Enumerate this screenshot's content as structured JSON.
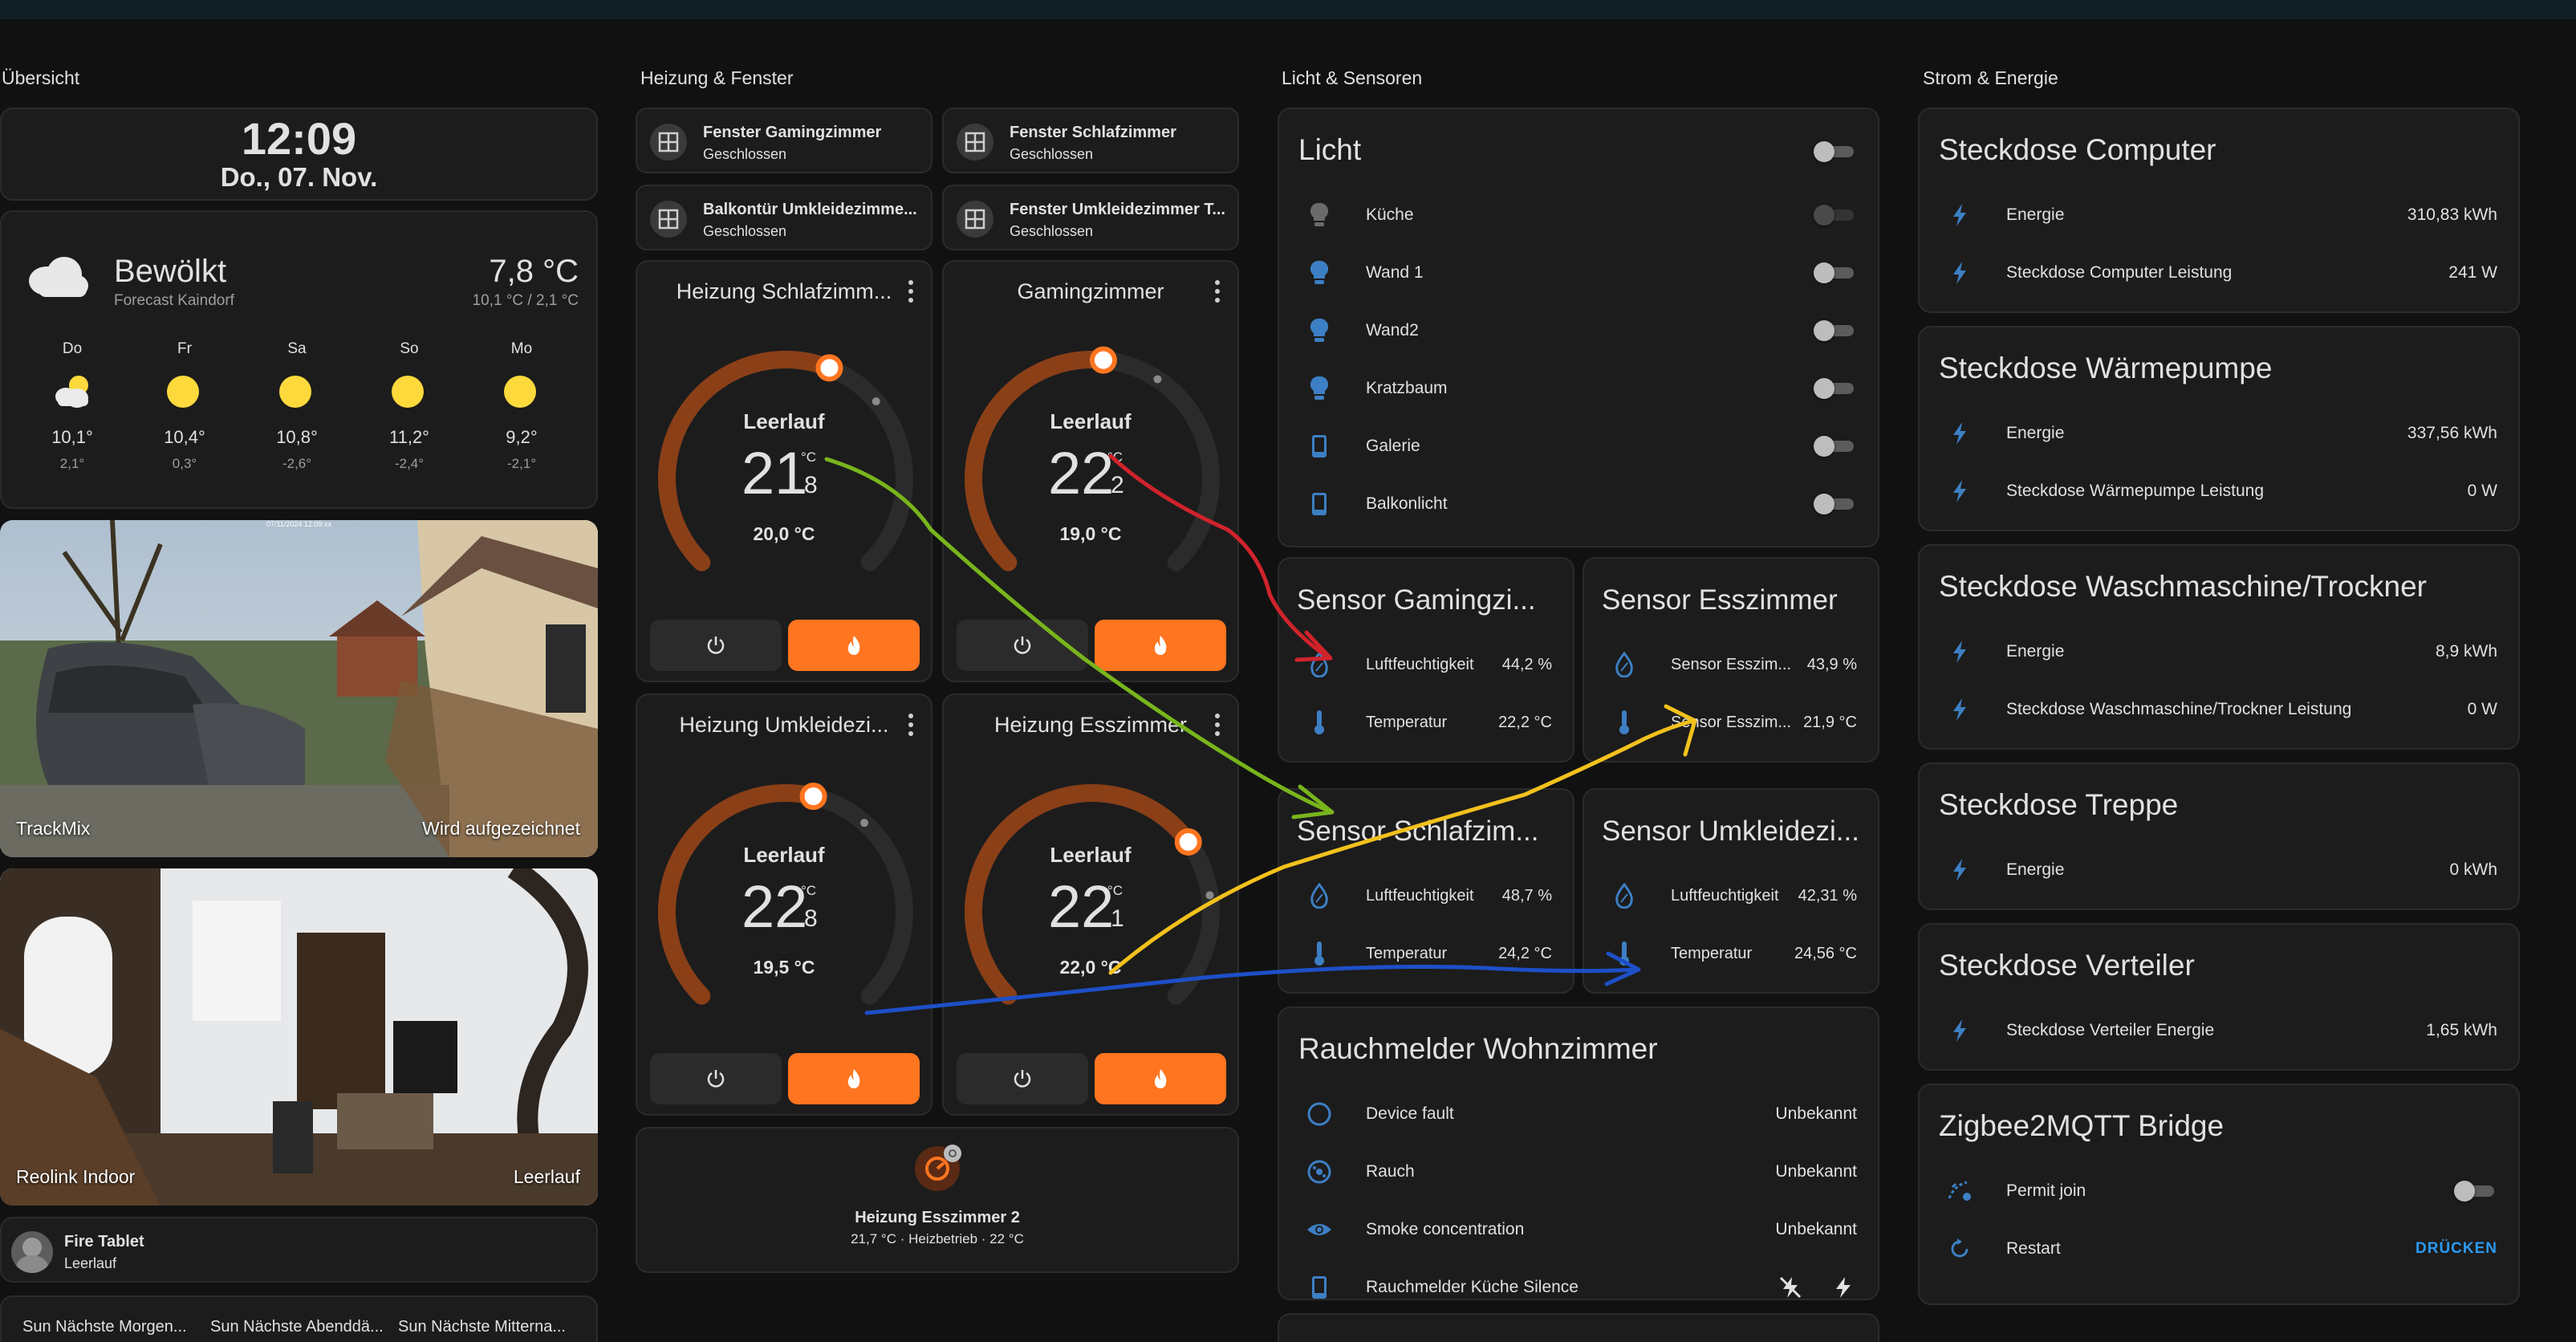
{
  "columns": {
    "overview": "Übersicht",
    "heating": "Heizung & Fenster",
    "lights": "Licht & Sensoren",
    "energy": "Strom & Energie"
  },
  "clock": {
    "time": "12:09",
    "date": "Do., 07. Nov."
  },
  "weather": {
    "condition": "Bewölkt",
    "location": "Forecast Kaindorf",
    "temp": "7,8 °C",
    "range": "10,1 °C / 2,1 °C",
    "forecast": [
      {
        "day": "Do",
        "icon": "partly-cloudy-icon",
        "high": "10,1°",
        "low": "2,1°"
      },
      {
        "day": "Fr",
        "icon": "sun-icon",
        "high": "10,4°",
        "low": "0,3°"
      },
      {
        "day": "Sa",
        "icon": "sun-icon",
        "high": "10,8°",
        "low": "-2,6°"
      },
      {
        "day": "So",
        "icon": "sun-icon",
        "high": "11,2°",
        "low": "-2,4°"
      },
      {
        "day": "Mo",
        "icon": "sun-icon",
        "high": "9,2°",
        "low": "-2,1°"
      }
    ]
  },
  "cameras": [
    {
      "name": "TrackMix",
      "status": "Wird aufgezeichnet",
      "timestamp": "07/11/2024 12:09:xx"
    },
    {
      "name": "Reolink Indoor",
      "status": "Leerlauf"
    }
  ],
  "fire_tablet": {
    "name": "Fire Tablet",
    "state": "Leerlauf"
  },
  "sun_chips": [
    "Sun Nächste Morgen...",
    "Sun Nächste Abenddä...",
    "Sun Nächste Mitterna..."
  ],
  "windows": [
    {
      "name": "Fenster Gamingzimmer",
      "state": "Geschlossen"
    },
    {
      "name": "Fenster Schlafzimmer",
      "state": "Geschlossen"
    },
    {
      "name": "Balkontür Umkleidezimme...",
      "state": "Geschlossen"
    },
    {
      "name": "Fenster Umkleidezimmer T...",
      "state": "Geschlossen"
    }
  ],
  "thermostats": [
    {
      "name": "Heizung Schlafzimm...",
      "mode": "Leerlauf",
      "current_int": "21",
      "current_dec": "8",
      "unit": "°C",
      "target": "20,0 °C",
      "setpoint_fraction": 0.58
    },
    {
      "name": "Gamingzimmer",
      "mode": "Leerlauf",
      "current_int": "22",
      "current_dec": "2",
      "unit": "°C",
      "target": "19,0 °C",
      "setpoint_fraction": 0.52
    },
    {
      "name": "Heizung Umkleidezi...",
      "mode": "Leerlauf",
      "current_int": "22",
      "current_dec": "8",
      "unit": "°C",
      "target": "19,5 °C",
      "setpoint_fraction": 0.55
    },
    {
      "name": "Heizung Esszimmer",
      "mode": "Leerlauf",
      "current_int": "22",
      "current_dec": "1",
      "unit": "°C",
      "target": "22,0 °C",
      "setpoint_fraction": 0.7
    }
  ],
  "heater2": {
    "name": "Heizung Esszimmer 2",
    "detail": "21,7 °C · Heizbetrieb · 22 °C"
  },
  "light_card": {
    "title": "Licht",
    "items": [
      {
        "name": "Küche",
        "icon": "bulb-icon",
        "on": false
      },
      {
        "name": "Wand 1",
        "icon": "bulb-icon",
        "on": false
      },
      {
        "name": "Wand2",
        "icon": "bulb-icon",
        "on": false
      },
      {
        "name": "Kratzbaum",
        "icon": "bulb-icon",
        "on": false
      },
      {
        "name": "Galerie",
        "icon": "phone-icon",
        "on": false
      },
      {
        "name": "Balkonlicht",
        "icon": "phone-icon",
        "on": false
      }
    ]
  },
  "sensors": [
    {
      "title": "Sensor Gamingzi...",
      "hum_label": "Luftfeuchtigkeit",
      "hum": "44,2 %",
      "temp_label": "Temperatur",
      "temp": "22,2 °C"
    },
    {
      "title": "Sensor Esszimmer",
      "hum_label": "Sensor Esszim...",
      "hum": "43,9 %",
      "temp_label": "Sensor Esszim...",
      "temp": "21,9 °C"
    },
    {
      "title": "Sensor Schlafzim...",
      "hum_label": "Luftfeuchtigkeit",
      "hum": "48,7 %",
      "temp_label": "Temperatur",
      "temp": "24,2 °C"
    },
    {
      "title": "Sensor Umkleidezi...",
      "hum_label": "Luftfeuchtigkeit",
      "hum": "42,31 %",
      "temp_label": "Temperatur",
      "temp": "24,56 °C"
    }
  ],
  "smoke": {
    "title": "Rauchmelder Wohnzimmer",
    "items": [
      {
        "name": "Device fault",
        "value": "Unbekannt"
      },
      {
        "name": "Rauch",
        "value": "Unbekannt"
      },
      {
        "name": "Smoke concentration",
        "value": "Unbekannt"
      },
      {
        "name": "Rauchmelder Küche Silence"
      }
    ]
  },
  "energy": [
    {
      "title": "Steckdose Computer",
      "rows": [
        {
          "name": "Energie",
          "value": "310,83 kWh"
        },
        {
          "name": "Steckdose Computer Leistung",
          "value": "241 W"
        }
      ]
    },
    {
      "title": "Steckdose Wärmepumpe",
      "rows": [
        {
          "name": "Energie",
          "value": "337,56 kWh"
        },
        {
          "name": "Steckdose Wärmepumpe Leistung",
          "value": "0 W"
        }
      ]
    },
    {
      "title": "Steckdose Waschmaschine/Trockner",
      "rows": [
        {
          "name": "Energie",
          "value": "8,9 kWh"
        },
        {
          "name": "Steckdose Waschmaschine/Trockner Leistung",
          "value": "0 W"
        }
      ]
    },
    {
      "title": "Steckdose Treppe",
      "rows": [
        {
          "name": "Energie",
          "value": "0 kWh"
        }
      ]
    },
    {
      "title": "Steckdose Verteiler",
      "rows": [
        {
          "name": "Steckdose Verteiler Energie",
          "value": "1,65 kWh"
        }
      ]
    }
  ],
  "zigbee": {
    "title": "Zigbee2MQTT Bridge",
    "permit": "Permit join",
    "restart": "Restart",
    "press": "DRÜCKEN"
  },
  "colors": {
    "accent": "#ff7520",
    "arc": "#8a3f17",
    "icon_blue": "#3d7fc4",
    "bg": "#111111",
    "card": "#1c1c1c"
  }
}
